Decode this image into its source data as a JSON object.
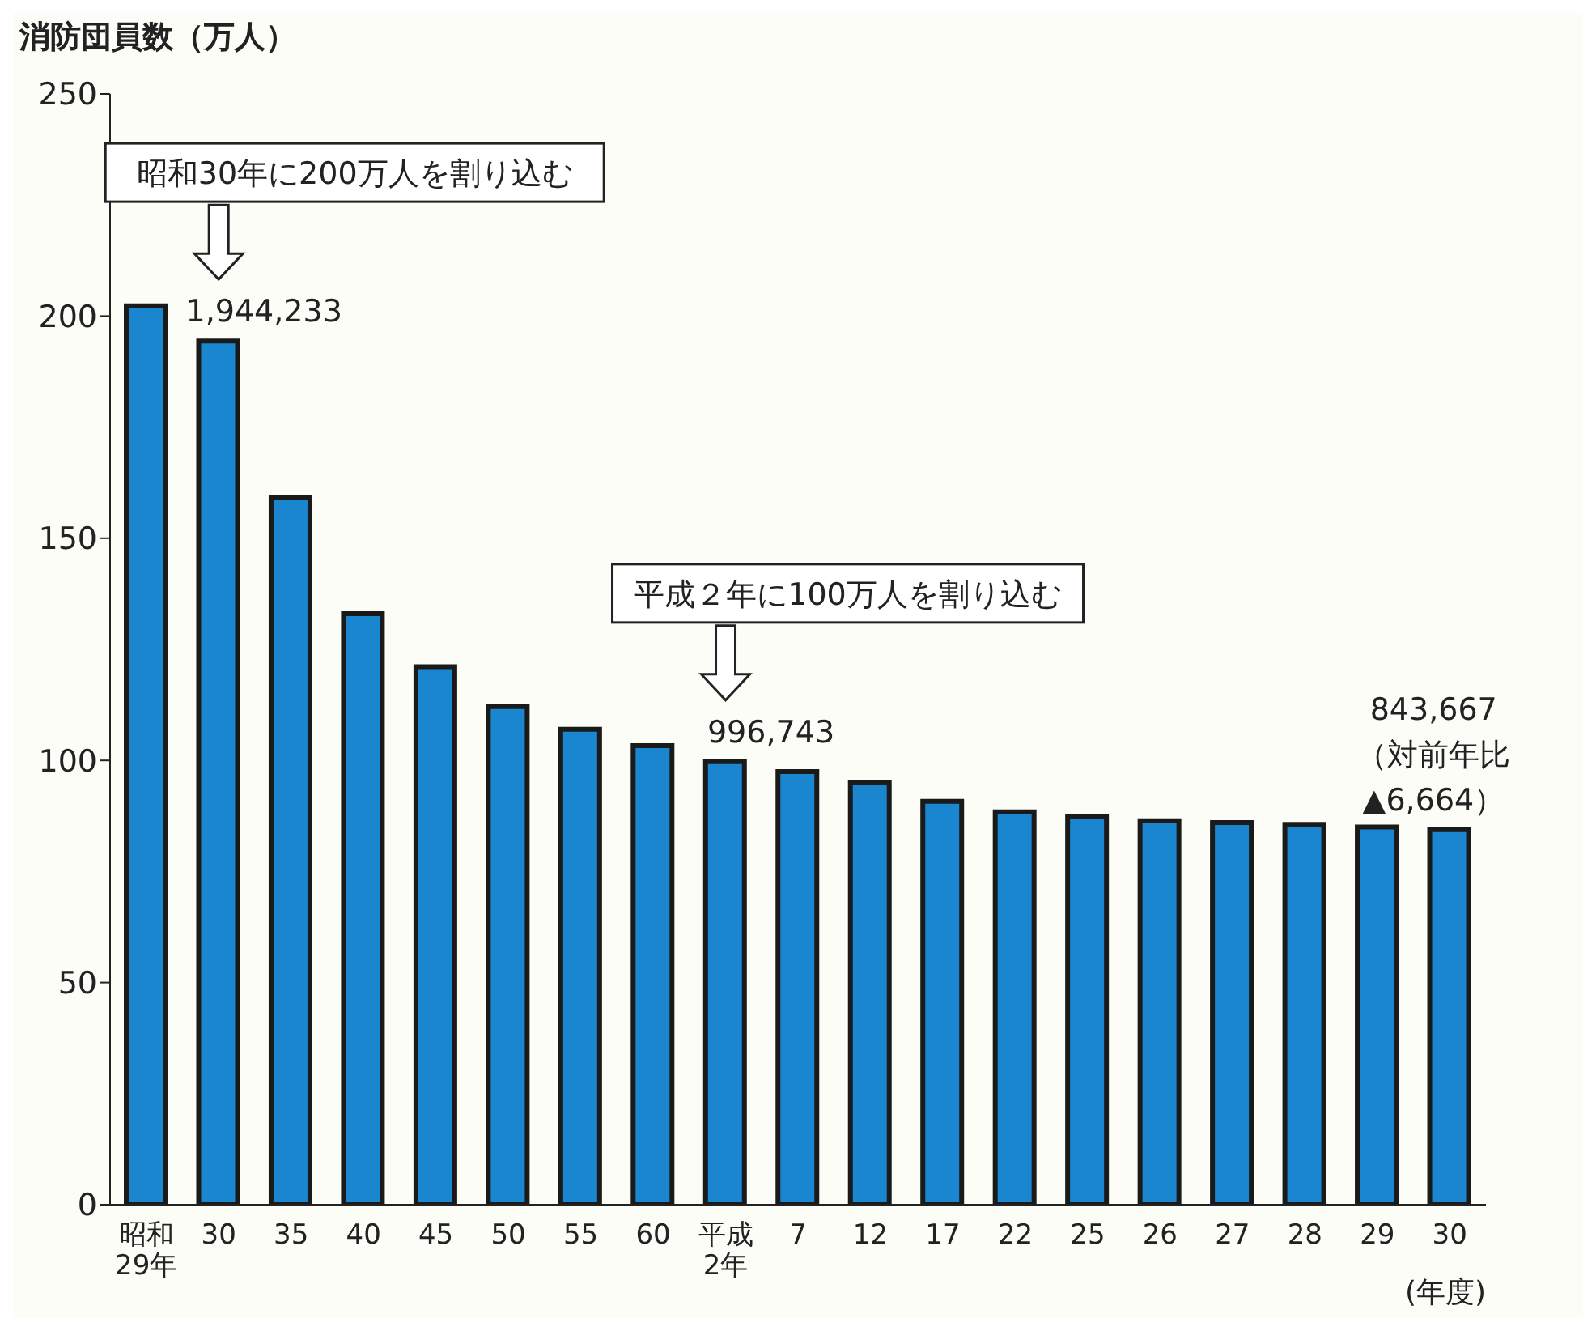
{
  "chart_data": {
    "type": "bar",
    "ylabel": "消防団員数（万人）",
    "xlabel": "(年度)",
    "categories": [
      "昭和\n29年",
      "30",
      "35",
      "40",
      "45",
      "50",
      "55",
      "60",
      "平成\n2年",
      "7",
      "12",
      "17",
      "22",
      "25",
      "26",
      "27",
      "28",
      "29",
      "30"
    ],
    "values": [
      202.3,
      194.4,
      159.2,
      133.0,
      121.1,
      112.1,
      107.0,
      103.3,
      99.7,
      97.5,
      95.1,
      90.8,
      88.4,
      87.4,
      86.4,
      86.0,
      85.6,
      85.0,
      84.4
    ],
    "color": "#1a86d0",
    "ylim": [
      0,
      250
    ],
    "yticks": [
      0,
      50,
      100,
      150,
      200,
      250
    ],
    "grid": false,
    "annotations": [
      {
        "text": "1,944,233",
        "x": "30",
        "y": 194.4
      },
      {
        "text": "996,743",
        "x": "平成\n2年",
        "y": 99.7
      },
      "昭和30年に200万人を割り込む",
      "平成２年に100万人を割り込む",
      "843,667\n（対前年比\n▲6,664）"
    ]
  }
}
